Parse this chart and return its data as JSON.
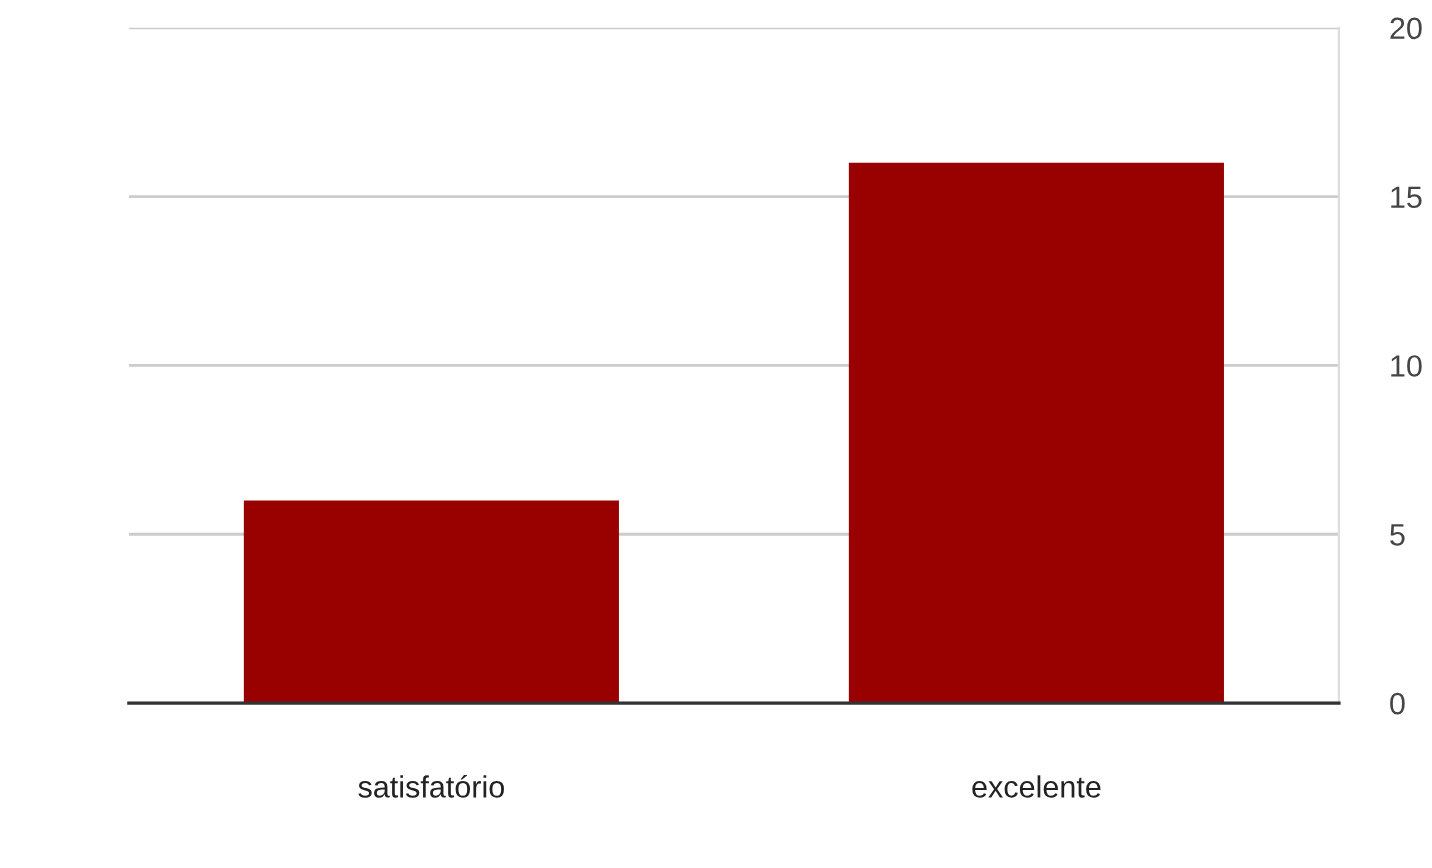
{
  "chart_data": {
    "type": "bar",
    "categories": [
      "satisfatório",
      "excelente"
    ],
    "values": [
      6,
      16
    ],
    "color": "#990000",
    "ylim": [
      0,
      20
    ],
    "yticks": [
      0,
      5,
      10,
      15,
      20
    ],
    "grid": "y"
  }
}
